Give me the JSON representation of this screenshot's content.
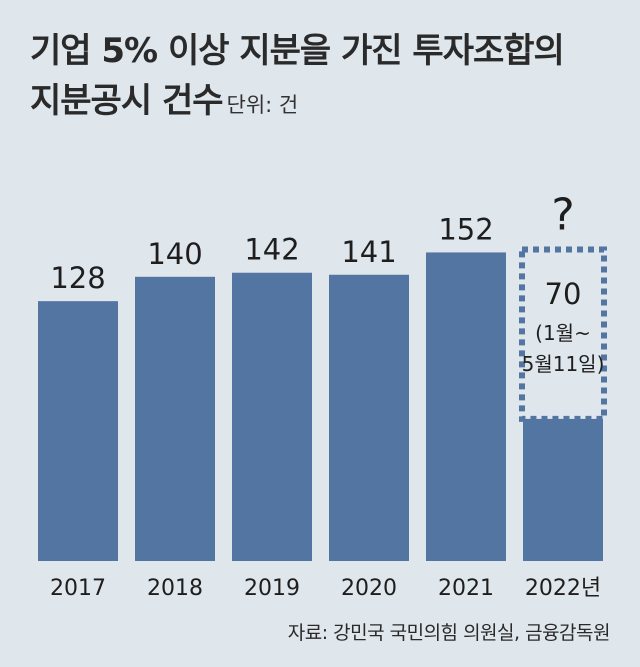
{
  "header": {
    "title_line1": "기업 5% 이상 지분을 가진 투자조합의",
    "title_line2": "지분공시 건수",
    "unit": "단위: 건"
  },
  "source": "자료: 강민국 국민의힘 의원실, 금융감독원",
  "chart_data": {
    "type": "bar",
    "title": "기업 5% 이상 지분을 가진 투자조합의 지분공시 건수",
    "unit": "단위: 건",
    "categories": [
      "2017",
      "2018",
      "2019",
      "2020",
      "2021",
      "2022년"
    ],
    "values": [
      128,
      140,
      142,
      141,
      152,
      70
    ],
    "data_labels": [
      "128",
      "140",
      "142",
      "141",
      "152",
      "70"
    ],
    "annotation": {
      "category": "2022년",
      "question_mark": "?",
      "period_line1": "(1월~",
      "period_line2": "5월11일)"
    },
    "colors": {
      "bar": "#5375a1",
      "background": "#dfe6ec",
      "text": "#1e1e1e"
    }
  }
}
